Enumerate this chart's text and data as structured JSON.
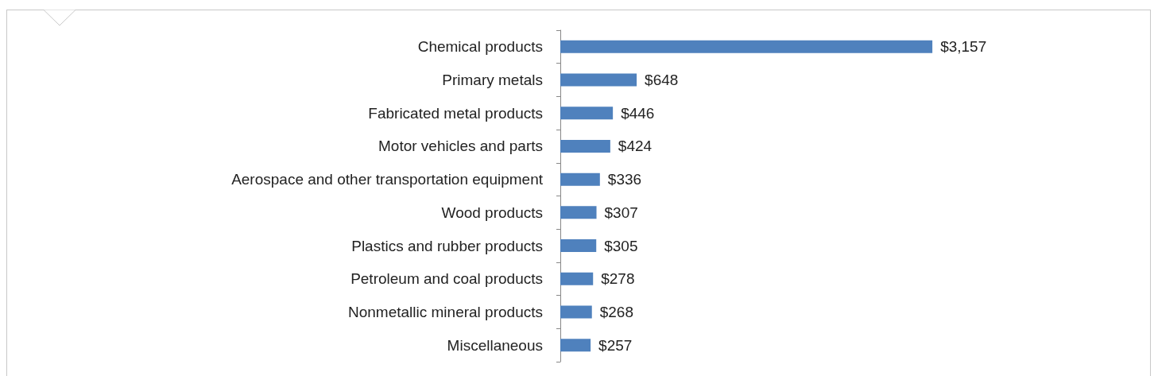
{
  "chart_data": {
    "type": "bar",
    "orientation": "horizontal",
    "categories": [
      "Chemical products",
      "Primary metals",
      "Fabricated metal products",
      "Motor vehicles and parts",
      "Aerospace and other transportation equipment",
      "Wood products",
      "Plastics and rubber products",
      "Petroleum and coal products",
      "Nonmetallic mineral products",
      "Miscellaneous"
    ],
    "values": [
      3157,
      648,
      446,
      424,
      336,
      307,
      305,
      278,
      268,
      257
    ],
    "value_labels": [
      "$3,157",
      "$648",
      "$446",
      "$424",
      "$336",
      "$307",
      "$305",
      "$278",
      "$268",
      "$257"
    ],
    "color": "#4f81bd"
  }
}
